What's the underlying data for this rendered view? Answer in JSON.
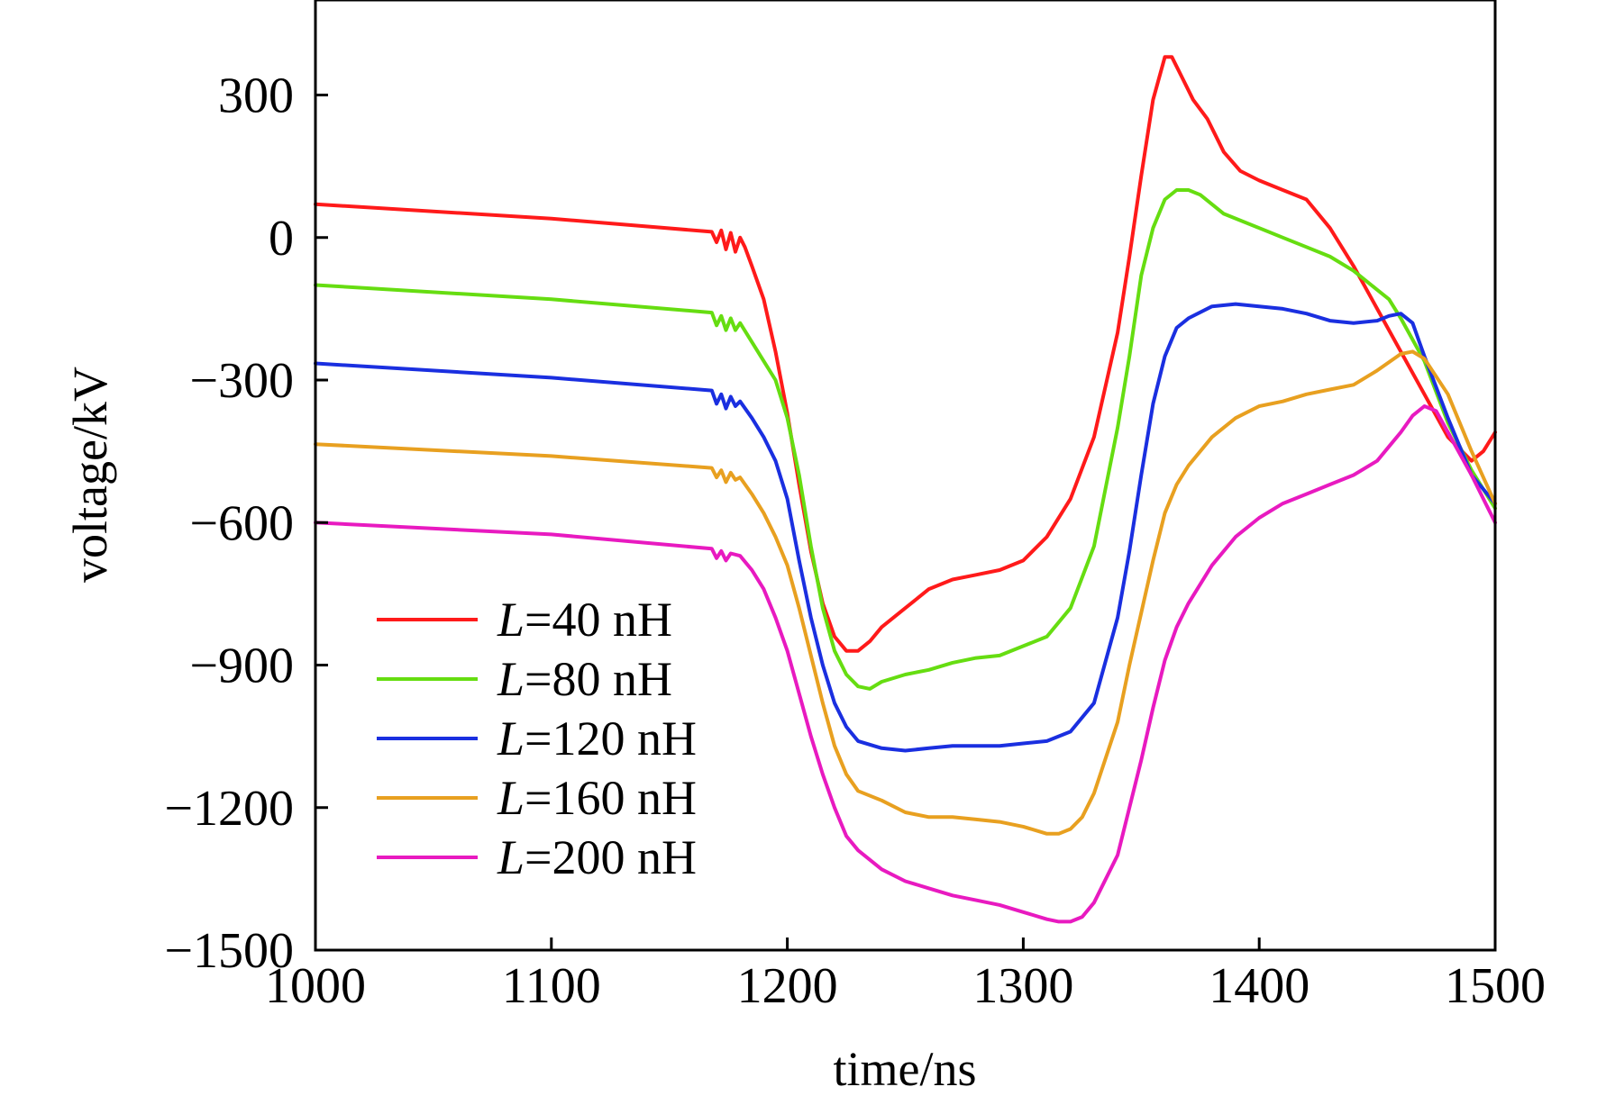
{
  "chart_data": {
    "type": "line",
    "title": "",
    "xlabel": "time/ns",
    "ylabel": "voltage/kV",
    "xlim": [
      1000,
      1500
    ],
    "ylim": [
      -1500,
      500
    ],
    "xticks": [
      1000,
      1100,
      1200,
      1300,
      1400,
      1500
    ],
    "yticks": [
      300,
      0,
      -300,
      -600,
      -900,
      -1200,
      -1500
    ],
    "xtick_labels": [
      "1000",
      "1100",
      "1200",
      "1300",
      "1400",
      "1500"
    ],
    "ytick_labels": [
      "300",
      "0",
      "−300",
      "−600",
      "−900",
      "−1200",
      "−1500"
    ],
    "grid": false,
    "legend_position": "lower-left",
    "series": [
      {
        "name": "L=40 nH",
        "var": "L",
        "label_rest": "=40 nH",
        "color": "#ff1a1a",
        "points": [
          [
            1000,
            70
          ],
          [
            1100,
            40
          ],
          [
            1168,
            12
          ],
          [
            1170,
            -10
          ],
          [
            1172,
            15
          ],
          [
            1174,
            -25
          ],
          [
            1176,
            10
          ],
          [
            1178,
            -30
          ],
          [
            1180,
            0
          ],
          [
            1182,
            -20
          ],
          [
            1185,
            -60
          ],
          [
            1190,
            -130
          ],
          [
            1195,
            -240
          ],
          [
            1200,
            -370
          ],
          [
            1205,
            -520
          ],
          [
            1210,
            -660
          ],
          [
            1215,
            -770
          ],
          [
            1220,
            -840
          ],
          [
            1225,
            -870
          ],
          [
            1230,
            -870
          ],
          [
            1235,
            -850
          ],
          [
            1240,
            -820
          ],
          [
            1250,
            -780
          ],
          [
            1260,
            -740
          ],
          [
            1270,
            -720
          ],
          [
            1280,
            -710
          ],
          [
            1290,
            -700
          ],
          [
            1300,
            -680
          ],
          [
            1310,
            -630
          ],
          [
            1320,
            -550
          ],
          [
            1330,
            -420
          ],
          [
            1340,
            -200
          ],
          [
            1345,
            -40
          ],
          [
            1350,
            130
          ],
          [
            1355,
            290
          ],
          [
            1360,
            380
          ],
          [
            1363,
            380
          ],
          [
            1367,
            340
          ],
          [
            1372,
            290
          ],
          [
            1378,
            250
          ],
          [
            1385,
            180
          ],
          [
            1392,
            140
          ],
          [
            1400,
            120
          ],
          [
            1410,
            100
          ],
          [
            1420,
            80
          ],
          [
            1430,
            20
          ],
          [
            1440,
            -60
          ],
          [
            1450,
            -150
          ],
          [
            1460,
            -240
          ],
          [
            1470,
            -330
          ],
          [
            1480,
            -420
          ],
          [
            1490,
            -470
          ],
          [
            1495,
            -450
          ],
          [
            1500,
            -410
          ]
        ]
      },
      {
        "name": "L=80 nH",
        "var": "L",
        "label_rest": "=80 nH",
        "color": "#66dd11",
        "points": [
          [
            1000,
            -100
          ],
          [
            1100,
            -130
          ],
          [
            1168,
            -158
          ],
          [
            1170,
            -185
          ],
          [
            1172,
            -165
          ],
          [
            1174,
            -195
          ],
          [
            1176,
            -170
          ],
          [
            1178,
            -195
          ],
          [
            1180,
            -180
          ],
          [
            1185,
            -220
          ],
          [
            1190,
            -260
          ],
          [
            1195,
            -300
          ],
          [
            1200,
            -380
          ],
          [
            1205,
            -500
          ],
          [
            1210,
            -650
          ],
          [
            1215,
            -780
          ],
          [
            1220,
            -870
          ],
          [
            1225,
            -920
          ],
          [
            1230,
            -945
          ],
          [
            1235,
            -950
          ],
          [
            1240,
            -935
          ],
          [
            1250,
            -920
          ],
          [
            1260,
            -910
          ],
          [
            1270,
            -895
          ],
          [
            1280,
            -885
          ],
          [
            1290,
            -880
          ],
          [
            1300,
            -860
          ],
          [
            1310,
            -840
          ],
          [
            1320,
            -780
          ],
          [
            1330,
            -650
          ],
          [
            1340,
            -400
          ],
          [
            1345,
            -250
          ],
          [
            1350,
            -80
          ],
          [
            1355,
            20
          ],
          [
            1360,
            80
          ],
          [
            1365,
            100
          ],
          [
            1370,
            100
          ],
          [
            1375,
            90
          ],
          [
            1385,
            50
          ],
          [
            1400,
            20
          ],
          [
            1410,
            0
          ],
          [
            1420,
            -20
          ],
          [
            1430,
            -40
          ],
          [
            1440,
            -70
          ],
          [
            1450,
            -110
          ],
          [
            1455,
            -130
          ],
          [
            1460,
            -170
          ],
          [
            1470,
            -260
          ],
          [
            1480,
            -390
          ],
          [
            1490,
            -490
          ],
          [
            1500,
            -570
          ]
        ]
      },
      {
        "name": "L=120 nH",
        "var": "L",
        "label_rest": "=120 nH",
        "color": "#1a2fe0",
        "points": [
          [
            1000,
            -265
          ],
          [
            1100,
            -295
          ],
          [
            1168,
            -322
          ],
          [
            1170,
            -350
          ],
          [
            1172,
            -330
          ],
          [
            1174,
            -360
          ],
          [
            1176,
            -335
          ],
          [
            1178,
            -355
          ],
          [
            1180,
            -345
          ],
          [
            1185,
            -380
          ],
          [
            1190,
            -420
          ],
          [
            1195,
            -470
          ],
          [
            1200,
            -550
          ],
          [
            1205,
            -680
          ],
          [
            1210,
            -800
          ],
          [
            1215,
            -900
          ],
          [
            1220,
            -980
          ],
          [
            1225,
            -1030
          ],
          [
            1230,
            -1060
          ],
          [
            1240,
            -1075
          ],
          [
            1250,
            -1080
          ],
          [
            1260,
            -1075
          ],
          [
            1270,
            -1070
          ],
          [
            1280,
            -1070
          ],
          [
            1290,
            -1070
          ],
          [
            1300,
            -1065
          ],
          [
            1310,
            -1060
          ],
          [
            1320,
            -1040
          ],
          [
            1330,
            -980
          ],
          [
            1340,
            -800
          ],
          [
            1345,
            -660
          ],
          [
            1350,
            -500
          ],
          [
            1355,
            -350
          ],
          [
            1360,
            -250
          ],
          [
            1365,
            -190
          ],
          [
            1370,
            -170
          ],
          [
            1380,
            -145
          ],
          [
            1390,
            -140
          ],
          [
            1400,
            -145
          ],
          [
            1410,
            -150
          ],
          [
            1420,
            -160
          ],
          [
            1430,
            -175
          ],
          [
            1440,
            -180
          ],
          [
            1450,
            -175
          ],
          [
            1455,
            -165
          ],
          [
            1460,
            -160
          ],
          [
            1465,
            -180
          ],
          [
            1470,
            -250
          ],
          [
            1480,
            -380
          ],
          [
            1490,
            -500
          ],
          [
            1500,
            -560
          ]
        ]
      },
      {
        "name": "L=160 nH",
        "var": "L",
        "label_rest": "=160 nH",
        "color": "#e8a020",
        "points": [
          [
            1000,
            -435
          ],
          [
            1100,
            -460
          ],
          [
            1168,
            -485
          ],
          [
            1170,
            -505
          ],
          [
            1172,
            -490
          ],
          [
            1174,
            -515
          ],
          [
            1176,
            -495
          ],
          [
            1178,
            -510
          ],
          [
            1180,
            -505
          ],
          [
            1185,
            -540
          ],
          [
            1190,
            -580
          ],
          [
            1195,
            -630
          ],
          [
            1200,
            -690
          ],
          [
            1205,
            -780
          ],
          [
            1210,
            -880
          ],
          [
            1215,
            -980
          ],
          [
            1220,
            -1070
          ],
          [
            1225,
            -1130
          ],
          [
            1230,
            -1165
          ],
          [
            1240,
            -1185
          ],
          [
            1250,
            -1210
          ],
          [
            1260,
            -1220
          ],
          [
            1270,
            -1220
          ],
          [
            1280,
            -1225
          ],
          [
            1290,
            -1230
          ],
          [
            1300,
            -1240
          ],
          [
            1310,
            -1255
          ],
          [
            1315,
            -1255
          ],
          [
            1320,
            -1245
          ],
          [
            1325,
            -1220
          ],
          [
            1330,
            -1170
          ],
          [
            1340,
            -1020
          ],
          [
            1345,
            -900
          ],
          [
            1350,
            -790
          ],
          [
            1355,
            -680
          ],
          [
            1360,
            -580
          ],
          [
            1365,
            -520
          ],
          [
            1370,
            -480
          ],
          [
            1380,
            -420
          ],
          [
            1390,
            -380
          ],
          [
            1400,
            -355
          ],
          [
            1410,
            -345
          ],
          [
            1420,
            -330
          ],
          [
            1430,
            -320
          ],
          [
            1440,
            -310
          ],
          [
            1450,
            -280
          ],
          [
            1460,
            -245
          ],
          [
            1465,
            -240
          ],
          [
            1470,
            -255
          ],
          [
            1480,
            -330
          ],
          [
            1490,
            -450
          ],
          [
            1500,
            -560
          ]
        ]
      },
      {
        "name": "L=200 nH",
        "var": "L",
        "label_rest": "=200 nH",
        "color": "#e81ac0",
        "points": [
          [
            1000,
            -600
          ],
          [
            1100,
            -625
          ],
          [
            1168,
            -655
          ],
          [
            1170,
            -675
          ],
          [
            1172,
            -660
          ],
          [
            1174,
            -680
          ],
          [
            1176,
            -665
          ],
          [
            1180,
            -670
          ],
          [
            1185,
            -700
          ],
          [
            1190,
            -740
          ],
          [
            1195,
            -800
          ],
          [
            1200,
            -870
          ],
          [
            1205,
            -960
          ],
          [
            1210,
            -1050
          ],
          [
            1215,
            -1130
          ],
          [
            1220,
            -1200
          ],
          [
            1225,
            -1260
          ],
          [
            1230,
            -1290
          ],
          [
            1240,
            -1330
          ],
          [
            1250,
            -1355
          ],
          [
            1260,
            -1370
          ],
          [
            1270,
            -1385
          ],
          [
            1280,
            -1395
          ],
          [
            1290,
            -1405
          ],
          [
            1300,
            -1420
          ],
          [
            1310,
            -1435
          ],
          [
            1315,
            -1440
          ],
          [
            1320,
            -1440
          ],
          [
            1325,
            -1430
          ],
          [
            1330,
            -1400
          ],
          [
            1340,
            -1300
          ],
          [
            1345,
            -1200
          ],
          [
            1350,
            -1100
          ],
          [
            1355,
            -990
          ],
          [
            1360,
            -890
          ],
          [
            1365,
            -820
          ],
          [
            1370,
            -770
          ],
          [
            1380,
            -690
          ],
          [
            1390,
            -630
          ],
          [
            1400,
            -590
          ],
          [
            1410,
            -560
          ],
          [
            1420,
            -540
          ],
          [
            1430,
            -520
          ],
          [
            1440,
            -500
          ],
          [
            1450,
            -470
          ],
          [
            1455,
            -440
          ],
          [
            1460,
            -410
          ],
          [
            1465,
            -375
          ],
          [
            1470,
            -355
          ],
          [
            1475,
            -365
          ],
          [
            1480,
            -410
          ],
          [
            1490,
            -500
          ],
          [
            1500,
            -600
          ]
        ]
      }
    ]
  }
}
